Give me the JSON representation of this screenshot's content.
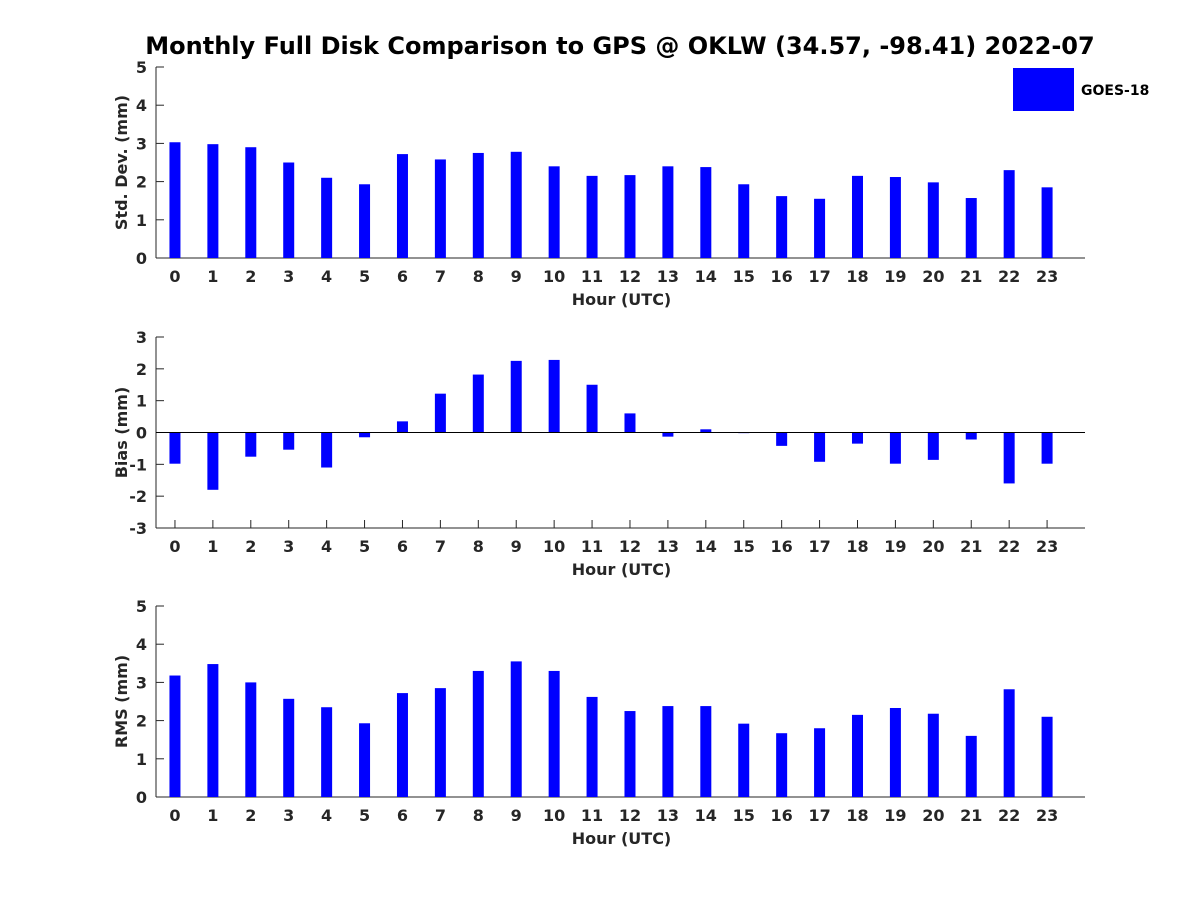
{
  "title": "Monthly Full Disk Comparison to GPS @ OKLW (34.57, -98.41) 2022-07",
  "colors": {
    "bar": "#0000ff",
    "axis": "#262626",
    "background": "#ffffff"
  },
  "legend": {
    "label": "GOES-18",
    "location": "top-right"
  },
  "chart_data": [
    {
      "type": "bar",
      "title": "Monthly Full Disk Comparison to GPS @ OKLW (34.57, -98.41) 2022-07",
      "xlabel": "Hour (UTC)",
      "ylabel": "Std. Dev. (mm)",
      "ylim": [
        0,
        5
      ],
      "yticks": [
        0,
        1,
        2,
        3,
        4,
        5
      ],
      "categories": [
        "0",
        "1",
        "2",
        "3",
        "4",
        "5",
        "6",
        "7",
        "8",
        "9",
        "10",
        "11",
        "12",
        "13",
        "14",
        "15",
        "16",
        "17",
        "18",
        "19",
        "20",
        "21",
        "22",
        "23"
      ],
      "series": [
        {
          "name": "GOES-18",
          "values": [
            3.03,
            2.98,
            2.9,
            2.5,
            2.1,
            1.93,
            2.72,
            2.58,
            2.75,
            2.78,
            2.4,
            2.15,
            2.17,
            2.4,
            2.38,
            1.93,
            1.62,
            1.55,
            2.15,
            2.12,
            1.98,
            1.57,
            2.3,
            1.85
          ]
        }
      ]
    },
    {
      "type": "bar",
      "xlabel": "Hour (UTC)",
      "ylabel": "Bias (mm)",
      "ylim": [
        -3,
        3
      ],
      "yticks": [
        -3,
        -2,
        -1,
        0,
        1,
        2,
        3
      ],
      "zero_line": true,
      "categories": [
        "0",
        "1",
        "2",
        "3",
        "4",
        "5",
        "6",
        "7",
        "8",
        "9",
        "10",
        "11",
        "12",
        "13",
        "14",
        "15",
        "16",
        "17",
        "18",
        "19",
        "20",
        "21",
        "22",
        "23"
      ],
      "series": [
        {
          "name": "GOES-18",
          "values": [
            -0.98,
            -1.8,
            -0.76,
            -0.54,
            -1.1,
            -0.15,
            0.35,
            1.22,
            1.82,
            2.25,
            2.28,
            1.5,
            0.6,
            -0.13,
            0.1,
            -0.02,
            -0.42,
            -0.92,
            -0.35,
            -0.98,
            -0.86,
            -0.22,
            -1.6,
            -0.98
          ]
        }
      ]
    },
    {
      "type": "bar",
      "xlabel": "Hour (UTC)",
      "ylabel": "RMS (mm)",
      "ylim": [
        0,
        5
      ],
      "yticks": [
        0,
        1,
        2,
        3,
        4,
        5
      ],
      "categories": [
        "0",
        "1",
        "2",
        "3",
        "4",
        "5",
        "6",
        "7",
        "8",
        "9",
        "10",
        "11",
        "12",
        "13",
        "14",
        "15",
        "16",
        "17",
        "18",
        "19",
        "20",
        "21",
        "22",
        "23"
      ],
      "series": [
        {
          "name": "GOES-18",
          "values": [
            3.18,
            3.48,
            3.0,
            2.57,
            2.35,
            1.93,
            2.72,
            2.85,
            3.3,
            3.55,
            3.3,
            2.62,
            2.25,
            2.38,
            2.38,
            1.92,
            1.67,
            1.8,
            2.15,
            2.33,
            2.18,
            1.6,
            2.82,
            2.1
          ]
        }
      ]
    }
  ]
}
